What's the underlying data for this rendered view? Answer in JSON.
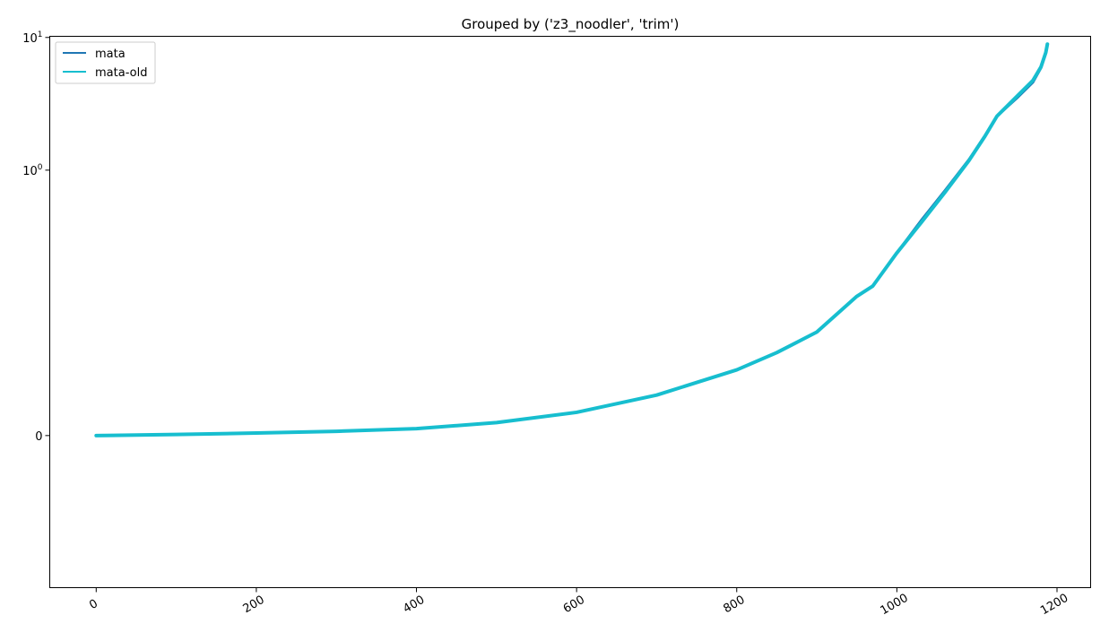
{
  "chart_data": {
    "type": "line",
    "title": "Grouped by ('z3_noodler', 'trim')",
    "xlabel": "",
    "ylabel": "",
    "xlim": [
      -58,
      1242
    ],
    "ylim": [
      -0.14,
      10.2
    ],
    "yscale": "symlog",
    "grid": false,
    "legend_position": "top-left",
    "x_ticks": [
      0,
      200,
      400,
      600,
      800,
      1000,
      1200
    ],
    "x_tick_labels": [
      "0",
      "200",
      "400",
      "600",
      "800",
      "1000",
      "1200"
    ],
    "y_ticks": [
      0,
      1,
      10
    ],
    "y_tick_labels": [
      {
        "base": "0",
        "exp": ""
      },
      {
        "base": "10",
        "exp": "0"
      },
      {
        "base": "10",
        "exp": "1"
      }
    ],
    "series": [
      {
        "name": "mata",
        "color": "#1f77b4",
        "x": [
          0,
          100,
          200,
          300,
          400,
          500,
          600,
          700,
          800,
          850,
          900,
          950,
          970,
          1000,
          1030,
          1060,
          1090,
          1110,
          1125,
          1150,
          1170,
          1180,
          1186,
          1188
        ],
        "y": [
          0,
          0.0008,
          0.0019,
          0.0032,
          0.0052,
          0.0098,
          0.0175,
          0.0305,
          0.0495,
          0.0625,
          0.078,
          0.112,
          0.134,
          0.238,
          0.415,
          0.7,
          1.2,
          1.82,
          2.55,
          3.5,
          4.6,
          5.9,
          7.6,
          8.8
        ]
      },
      {
        "name": "mata-old",
        "color": "#17becf",
        "x": [
          0,
          100,
          200,
          300,
          400,
          500,
          600,
          700,
          800,
          850,
          900,
          950,
          970,
          1000,
          1030,
          1060,
          1090,
          1110,
          1125,
          1150,
          1170,
          1180,
          1186,
          1188
        ],
        "y": [
          0,
          0.0008,
          0.0019,
          0.0032,
          0.0052,
          0.0098,
          0.0175,
          0.0305,
          0.0495,
          0.0625,
          0.078,
          0.112,
          0.134,
          0.238,
          0.4,
          0.68,
          1.18,
          1.8,
          2.55,
          3.6,
          4.75,
          6.0,
          7.7,
          8.9
        ]
      }
    ]
  }
}
